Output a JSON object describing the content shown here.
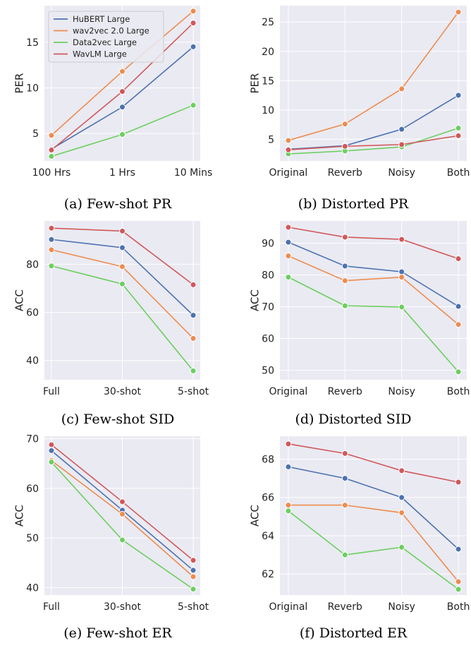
{
  "colors": {
    "plot_bg": "#eaeaf2",
    "grid": "#ffffff",
    "series": [
      "#4c72b0",
      "#ed8c4f",
      "#6ccf5f",
      "#d0595b"
    ]
  },
  "legend_placement": "top-left",
  "chart_data": [
    {
      "type": "line",
      "caption": "(a) Few-shot PR",
      "categories": [
        "100 Hrs",
        "1 Hrs",
        "10 Mins"
      ],
      "ylabel": "PER",
      "yticks": [
        5,
        10,
        15
      ],
      "ylim": [
        2,
        19
      ],
      "grid": true,
      "show_legend": true,
      "series": [
        {
          "name": "HuBERT Large",
          "values": [
            3.3,
            7.9,
            14.5
          ]
        },
        {
          "name": "wav2vec 2.0 Large",
          "values": [
            4.8,
            11.8,
            18.4
          ]
        },
        {
          "name": "Data2vec Large",
          "values": [
            2.5,
            4.9,
            8.1
          ]
        },
        {
          "name": "WavLM Large",
          "values": [
            3.2,
            9.6,
            17.1
          ]
        }
      ]
    },
    {
      "type": "line",
      "caption": "(b) Distorted PR",
      "categories": [
        "Original",
        "Reverb",
        "Noisy",
        "Both"
      ],
      "ylabel": "PER",
      "yticks": [
        5,
        10,
        15,
        20,
        25
      ],
      "ylim": [
        1.3,
        27.8
      ],
      "grid": true,
      "show_legend": false,
      "series": [
        {
          "name": "HuBERT Large",
          "values": [
            3.3,
            3.9,
            6.7,
            12.5
          ]
        },
        {
          "name": "wav2vec 2.0 Large",
          "values": [
            4.8,
            7.6,
            13.6,
            26.7
          ]
        },
        {
          "name": "Data2vec Large",
          "values": [
            2.5,
            3.0,
            3.7,
            6.9
          ]
        },
        {
          "name": "WavLM Large",
          "values": [
            3.2,
            3.8,
            4.1,
            5.6
          ]
        }
      ]
    },
    {
      "type": "line",
      "caption": "(c) Few-shot SID",
      "categories": [
        "Full",
        "30-shot",
        "5-shot"
      ],
      "ylabel": "ACC",
      "yticks": [
        40,
        60,
        80
      ],
      "ylim": [
        32,
        98
      ],
      "grid": true,
      "show_legend": false,
      "series": [
        {
          "name": "HuBERT Large",
          "values": [
            90.3,
            86.9,
            58.8
          ]
        },
        {
          "name": "wav2vec 2.0 Large",
          "values": [
            86.0,
            79.0,
            49.2
          ]
        },
        {
          "name": "Data2vec Large",
          "values": [
            79.3,
            71.8,
            35.7
          ]
        },
        {
          "name": "WavLM Large",
          "values": [
            95.0,
            93.8,
            71.5
          ]
        }
      ]
    },
    {
      "type": "line",
      "caption": "(d) Distorted SID",
      "categories": [
        "Original",
        "Reverb",
        "Noisy",
        "Both"
      ],
      "ylabel": "ACC",
      "yticks": [
        50,
        60,
        70,
        80,
        90
      ],
      "ylim": [
        47,
        97
      ],
      "grid": true,
      "show_legend": false,
      "series": [
        {
          "name": "HuBERT Large",
          "values": [
            90.3,
            82.8,
            81.0,
            70.1
          ]
        },
        {
          "name": "wav2vec 2.0 Large",
          "values": [
            86.0,
            78.2,
            79.3,
            64.4
          ]
        },
        {
          "name": "Data2vec Large",
          "values": [
            79.3,
            70.3,
            69.9,
            49.5
          ]
        },
        {
          "name": "WavLM Large",
          "values": [
            95.0,
            91.9,
            91.2,
            85.1
          ]
        }
      ]
    },
    {
      "type": "line",
      "caption": "(e) Few-shot ER",
      "categories": [
        "Full",
        "30-shot",
        "5-shot"
      ],
      "ylabel": "ACC",
      "yticks": [
        40,
        50,
        60,
        70
      ],
      "ylim": [
        38.5,
        70.5
      ],
      "grid": true,
      "show_legend": false,
      "series": [
        {
          "name": "HuBERT Large",
          "values": [
            67.6,
            55.6,
            43.5
          ]
        },
        {
          "name": "wav2vec 2.0 Large",
          "values": [
            65.6,
            54.8,
            42.2
          ]
        },
        {
          "name": "Data2vec Large",
          "values": [
            65.3,
            49.6,
            39.7
          ]
        },
        {
          "name": "WavLM Large",
          "values": [
            68.8,
            57.3,
            45.5
          ]
        }
      ]
    },
    {
      "type": "line",
      "caption": "(f) Distorted ER",
      "categories": [
        "Original",
        "Reverb",
        "Noisy",
        "Both"
      ],
      "ylabel": "ACC",
      "yticks": [
        62,
        64,
        66,
        68
      ],
      "ylim": [
        60.9,
        69.2
      ],
      "grid": true,
      "show_legend": false,
      "series": [
        {
          "name": "HuBERT Large",
          "values": [
            67.6,
            67.0,
            66.0,
            63.3
          ]
        },
        {
          "name": "wav2vec 2.0 Large",
          "values": [
            65.6,
            65.6,
            65.2,
            61.6
          ]
        },
        {
          "name": "Data2vec Large",
          "values": [
            65.3,
            63.0,
            63.4,
            61.2
          ]
        },
        {
          "name": "WavLM Large",
          "values": [
            68.8,
            68.3,
            67.4,
            66.8
          ]
        }
      ]
    }
  ]
}
